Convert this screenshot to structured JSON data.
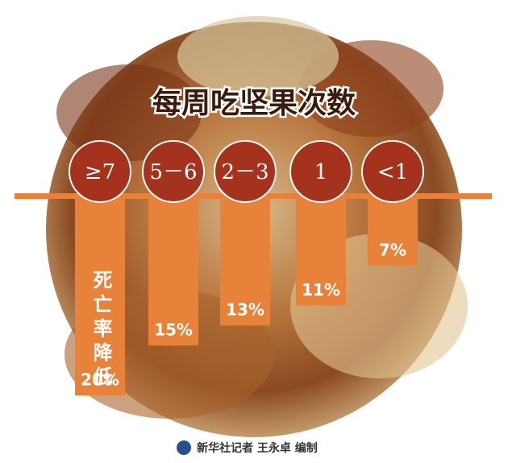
{
  "chart_data": {
    "type": "bar",
    "title": "每周吃坚果次数",
    "categories": [
      "≥7",
      "5－6",
      "2－3",
      "1",
      "<1"
    ],
    "values": [
      20,
      15,
      13,
      11,
      7
    ],
    "value_labels": [
      "20%",
      "15%",
      "13%",
      "11%",
      "7%"
    ],
    "color": "#e8823a",
    "annotation": "死亡率降低",
    "credit": "新华社记者 王永卓 编制"
  }
}
